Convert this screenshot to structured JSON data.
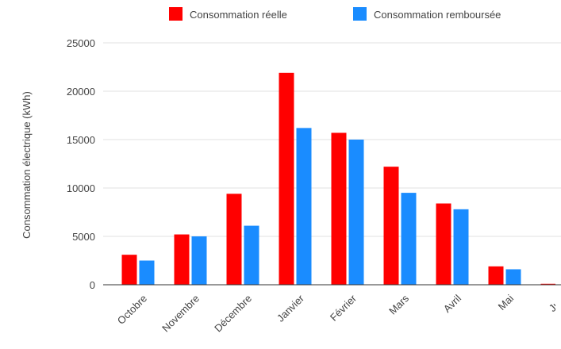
{
  "chart_data": {
    "type": "bar",
    "title": "",
    "xlabel": "",
    "ylabel": "Consommation électrique (kWh)",
    "ylim": [
      0,
      25000
    ],
    "yticks": [
      0,
      5000,
      10000,
      15000,
      20000,
      25000
    ],
    "grid": true,
    "legend": "top-right",
    "categories": [
      "Octobre",
      "Novembre",
      "Décembre",
      "Janvier",
      "Février",
      "Mars",
      "Avril",
      "Mai",
      "Juin"
    ],
    "series": [
      {
        "name": "Consommation réelle",
        "color": "#ff0000",
        "values": [
          3100,
          5200,
          9400,
          21900,
          15700,
          12200,
          8400,
          1900,
          100
        ]
      },
      {
        "name": "Consommation remboursée",
        "color": "#1a8cff",
        "values": [
          2500,
          5000,
          6100,
          16200,
          15000,
          9500,
          7800,
          1600,
          null
        ]
      }
    ]
  }
}
